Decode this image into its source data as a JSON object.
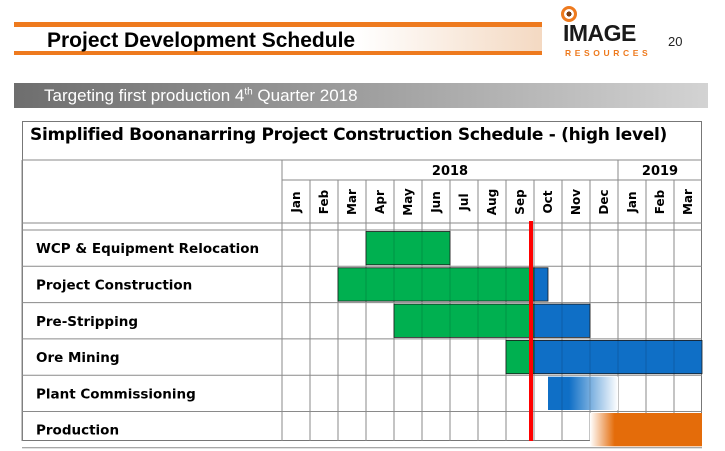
{
  "header": {
    "title": "Project Development Schedule",
    "page_number": "20",
    "logo": {
      "main": "IMAGE",
      "sub": "RESOURCES",
      "accent_color": "#ee7a1e"
    }
  },
  "subtitle": {
    "text": "Targeting first production 4",
    "sup": "th",
    "suffix": " Quarter 2018"
  },
  "chart_data": {
    "type": "gantt",
    "title": "Simplified Boonanarring Project Construction Schedule - (high level)",
    "years": [
      {
        "label": "2018",
        "start": 0,
        "span": 12
      },
      {
        "label": "2019",
        "start": 12,
        "span": 3
      }
    ],
    "months": [
      "Jan",
      "Feb",
      "Mar",
      "Apr",
      "May",
      "Jun",
      "Jul",
      "Aug",
      "Sep",
      "Oct",
      "Nov",
      "Dec",
      "Jan",
      "Feb",
      "Mar"
    ],
    "today_marker_month": 9,
    "colors": {
      "green": "#00b050",
      "blue": "#0f6fc6",
      "orange": "#e46c0a",
      "marker": "#ff0000"
    },
    "tasks": [
      {
        "name": "WCP & Equipment Relocation",
        "segments": [
          {
            "start": 3,
            "end": 6,
            "color": "green"
          }
        ]
      },
      {
        "name": "Project Construction",
        "segments": [
          {
            "start": 2,
            "end": 9,
            "color": "green"
          },
          {
            "start": 9,
            "end": 9.5,
            "color": "blue"
          }
        ]
      },
      {
        "name": "Pre-Stripping",
        "segments": [
          {
            "start": 4,
            "end": 9,
            "color": "green"
          },
          {
            "start": 9,
            "end": 11,
            "color": "blue"
          }
        ]
      },
      {
        "name": "Ore Mining",
        "segments": [
          {
            "start": 8,
            "end": 9,
            "color": "green"
          },
          {
            "start": 9,
            "end": 15,
            "color": "blue"
          }
        ]
      },
      {
        "name": "Plant Commissioning",
        "segments": [
          {
            "start": 9.5,
            "end": 12,
            "color": "blue",
            "fade": true
          }
        ]
      },
      {
        "name": "Production",
        "segments": [
          {
            "start": 11,
            "end": 15,
            "color": "orange",
            "fade_in": true
          }
        ]
      }
    ]
  }
}
